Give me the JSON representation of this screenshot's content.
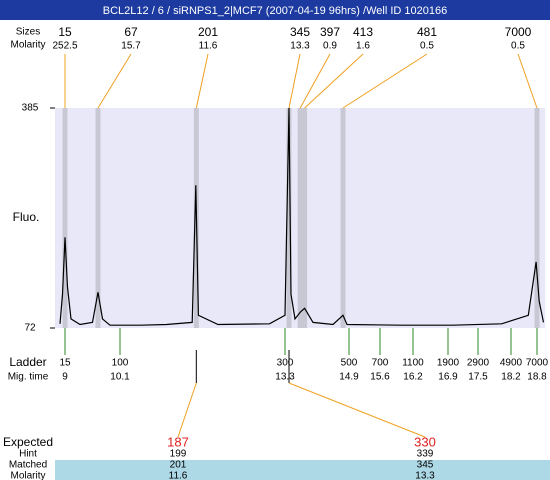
{
  "header": {
    "title": "BCL2L12 / 6 / siRNPS1_2|MCF7 (2007-04-19 96hrs) /Well ID 1020166"
  },
  "labels": {
    "sizes": "Sizes",
    "molarity": "Molarity",
    "fluo": "Fluo.",
    "ladder": "Ladder",
    "mig_time": "Mig. time",
    "expected": "Expected",
    "hint": "Hint",
    "matched": "Matched",
    "molarity_bottom": "Molarity"
  },
  "chart_data": {
    "type": "line",
    "x": [
      8.9,
      8.95,
      9.0,
      9.05,
      9.12,
      9.3,
      9.55,
      9.66,
      9.75,
      9.9,
      10.5,
      11.0,
      11.5,
      11.57,
      11.62,
      12.0,
      13.0,
      13.3,
      13.4,
      13.45,
      13.55,
      13.69,
      13.79,
      14.0,
      14.5,
      14.75,
      14.85,
      16.0,
      17.0,
      18.0,
      18.6,
      18.78,
      18.85,
      18.95
    ],
    "series": [
      {
        "color": "#000000",
        "values": [
          78,
          120,
          201,
          130,
          85,
          77,
          80,
          123,
          85,
          76,
          76,
          77,
          80,
          275,
          90,
          77,
          78,
          90,
          385,
          120,
          85,
          95,
          100,
          80,
          77,
          90,
          77,
          76,
          76,
          78,
          90,
          166,
          110,
          80
        ]
      }
    ],
    "ylim": [
      72,
      385
    ],
    "yticks": [
      72,
      385
    ],
    "peaks": {
      "sizes": [
        15,
        67,
        201,
        345,
        397,
        413,
        481,
        7000
      ],
      "molarity": [
        252.5,
        15.7,
        11.6,
        13.3,
        0.9,
        1.6,
        0.5,
        0.5
      ],
      "times": [
        9.0,
        9.66,
        11.58,
        13.4,
        13.68,
        13.79,
        14.75,
        18.8
      ]
    },
    "ladder": {
      "sizes": [
        15,
        100,
        300,
        500,
        700,
        1100,
        1900,
        2900,
        4900,
        7000
      ],
      "times": [
        9,
        10.1,
        13.3,
        14.9,
        15.6,
        16.2,
        16.9,
        17.5,
        18.2,
        18.8
      ]
    },
    "expected": {
      "values": [
        187,
        330
      ],
      "hint": [
        199,
        339
      ],
      "matched": [
        201,
        345
      ],
      "molarity": [
        11.6,
        13.3
      ]
    }
  }
}
